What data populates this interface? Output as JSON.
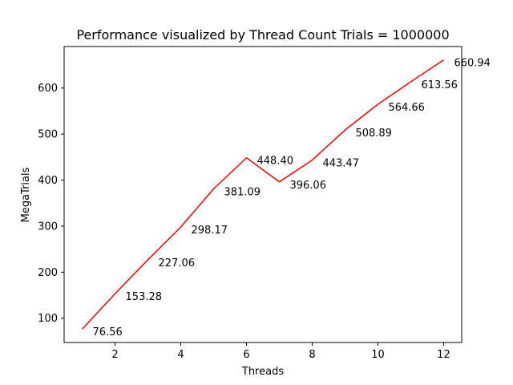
{
  "chart_data": {
    "type": "line",
    "title": "Performance visualized by Thread Count Trials = 1000000",
    "xlabel": "Threads",
    "ylabel": "MegaTrials",
    "xlim": [
      0.45,
      12.55
    ],
    "ylim": [
      47.3,
      690.1
    ],
    "xticks": [
      2,
      4,
      6,
      8,
      10,
      12
    ],
    "yticks": [
      100,
      200,
      300,
      400,
      500,
      600
    ],
    "grid": false,
    "series": [
      {
        "color": "#ff0000",
        "x": [
          1,
          2,
          3,
          4,
          5,
          6,
          7,
          8,
          9,
          10,
          11,
          12
        ],
        "values": [
          76.56,
          153.28,
          227.06,
          298.17,
          381.09,
          448.4,
          396.06,
          443.47,
          508.89,
          564.66,
          613.56,
          660.94
        ],
        "labels": [
          "76.56",
          "153.28",
          "227.06",
          "298.17",
          "381.09",
          "448.40",
          "396.06",
          "443.47",
          "508.89",
          "564.66",
          "613.56",
          "660.94"
        ]
      }
    ]
  }
}
